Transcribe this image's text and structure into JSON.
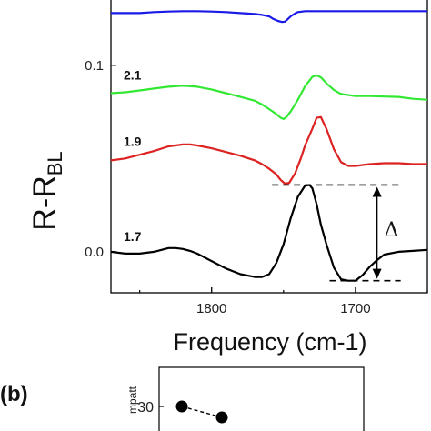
{
  "chart_data": [
    {
      "type": "line",
      "xlabel": "Frequency (cm-1)",
      "ylabel_main": "R-R",
      "ylabel_sub": "BL",
      "x_reversed": true,
      "xlim": [
        1870,
        1650
      ],
      "ylim": [
        -0.022,
        0.135
      ],
      "x_ticks": [
        1800,
        1700
      ],
      "y_ticks": [
        {
          "value": 0.0,
          "label": "0.0"
        },
        {
          "value": 0.1,
          "label": "0.1"
        }
      ],
      "annotation": {
        "text": "Δ",
        "x_from": 1758,
        "x_to": 1685
      },
      "series": [
        {
          "name": "",
          "color": "#1a1ae6",
          "x": [
            1870,
            1860,
            1850,
            1840,
            1830,
            1820,
            1810,
            1800,
            1790,
            1780,
            1770,
            1765,
            1760,
            1757,
            1754,
            1751,
            1749,
            1747,
            1745,
            1742,
            1740,
            1735,
            1730,
            1720,
            1710,
            1700,
            1690,
            1680,
            1670,
            1660,
            1650
          ],
          "y": [
            0.128,
            0.128,
            0.128,
            0.1285,
            0.1288,
            0.129,
            0.129,
            0.1288,
            0.1285,
            0.128,
            0.1275,
            0.127,
            0.1262,
            0.1248,
            0.1238,
            0.1232,
            0.1234,
            0.1248,
            0.1262,
            0.1278,
            0.1285,
            0.129,
            0.129,
            0.129,
            0.129,
            0.129,
            0.129,
            0.129,
            0.129,
            0.129,
            0.129
          ]
        },
        {
          "name": "2.1",
          "color": "#33e833",
          "x": [
            1870,
            1860,
            1850,
            1840,
            1830,
            1820,
            1810,
            1800,
            1790,
            1780,
            1770,
            1765,
            1760,
            1755,
            1752,
            1750,
            1748,
            1745,
            1740,
            1735,
            1730,
            1727,
            1724,
            1720,
            1715,
            1710,
            1700,
            1690,
            1680,
            1670,
            1660,
            1650
          ],
          "y": [
            0.085,
            0.0855,
            0.0865,
            0.0875,
            0.0885,
            0.089,
            0.0885,
            0.087,
            0.085,
            0.083,
            0.081,
            0.079,
            0.0765,
            0.0738,
            0.0718,
            0.0712,
            0.0722,
            0.0752,
            0.0815,
            0.0888,
            0.0938,
            0.0946,
            0.0935,
            0.0902,
            0.0868,
            0.0846,
            0.0835,
            0.0835,
            0.0832,
            0.083,
            0.082,
            0.0815
          ]
        },
        {
          "name": "1.9",
          "color": "#dd2222",
          "x": [
            1870,
            1860,
            1850,
            1840,
            1830,
            1820,
            1815,
            1810,
            1800,
            1790,
            1780,
            1770,
            1765,
            1760,
            1755,
            1752,
            1749,
            1746,
            1742,
            1738,
            1735,
            1730,
            1727,
            1724,
            1720,
            1715,
            1710,
            1705,
            1700,
            1690,
            1680,
            1670,
            1660,
            1650
          ],
          "y": [
            0.049,
            0.05,
            0.052,
            0.054,
            0.0565,
            0.0575,
            0.0575,
            0.057,
            0.0555,
            0.0535,
            0.0515,
            0.049,
            0.047,
            0.0445,
            0.0415,
            0.0385,
            0.0365,
            0.037,
            0.042,
            0.05,
            0.057,
            0.066,
            0.0718,
            0.0722,
            0.0655,
            0.055,
            0.048,
            0.046,
            0.046,
            0.047,
            0.0475,
            0.0475,
            0.047,
            0.047
          ]
        },
        {
          "name": "1.7",
          "color": "#000000",
          "x": [
            1870,
            1860,
            1850,
            1840,
            1830,
            1825,
            1820,
            1815,
            1810,
            1800,
            1790,
            1780,
            1770,
            1765,
            1760,
            1755,
            1750,
            1745,
            1740,
            1735,
            1732,
            1730,
            1727,
            1724,
            1720,
            1715,
            1710,
            1705,
            1700,
            1695,
            1690,
            1685,
            1680,
            1670,
            1660,
            1650
          ],
          "y": [
            0.0,
            -0.001,
            -0.001,
            0.0,
            0.002,
            0.002,
            0.0015,
            0.0005,
            -0.001,
            -0.005,
            -0.009,
            -0.012,
            -0.0135,
            -0.0135,
            -0.012,
            -0.006,
            0.004,
            0.018,
            0.0295,
            0.0355,
            0.0358,
            0.034,
            0.0255,
            0.0145,
            0.0035,
            -0.0085,
            -0.0148,
            -0.0155,
            -0.0155,
            -0.0125,
            -0.008,
            -0.0045,
            -0.0015,
            0.0,
            0.0005,
            0.001
          ]
        }
      ]
    },
    {
      "type": "scatter",
      "panel_label": "(b)",
      "ylabel_partial": "mpatt",
      "y_ticks": [
        {
          "value": 30,
          "label": "30"
        }
      ],
      "series": [
        {
          "name": "",
          "color": "#000000",
          "x": [
            1,
            2
          ],
          "y": [
            30,
            28.8
          ]
        }
      ]
    }
  ]
}
